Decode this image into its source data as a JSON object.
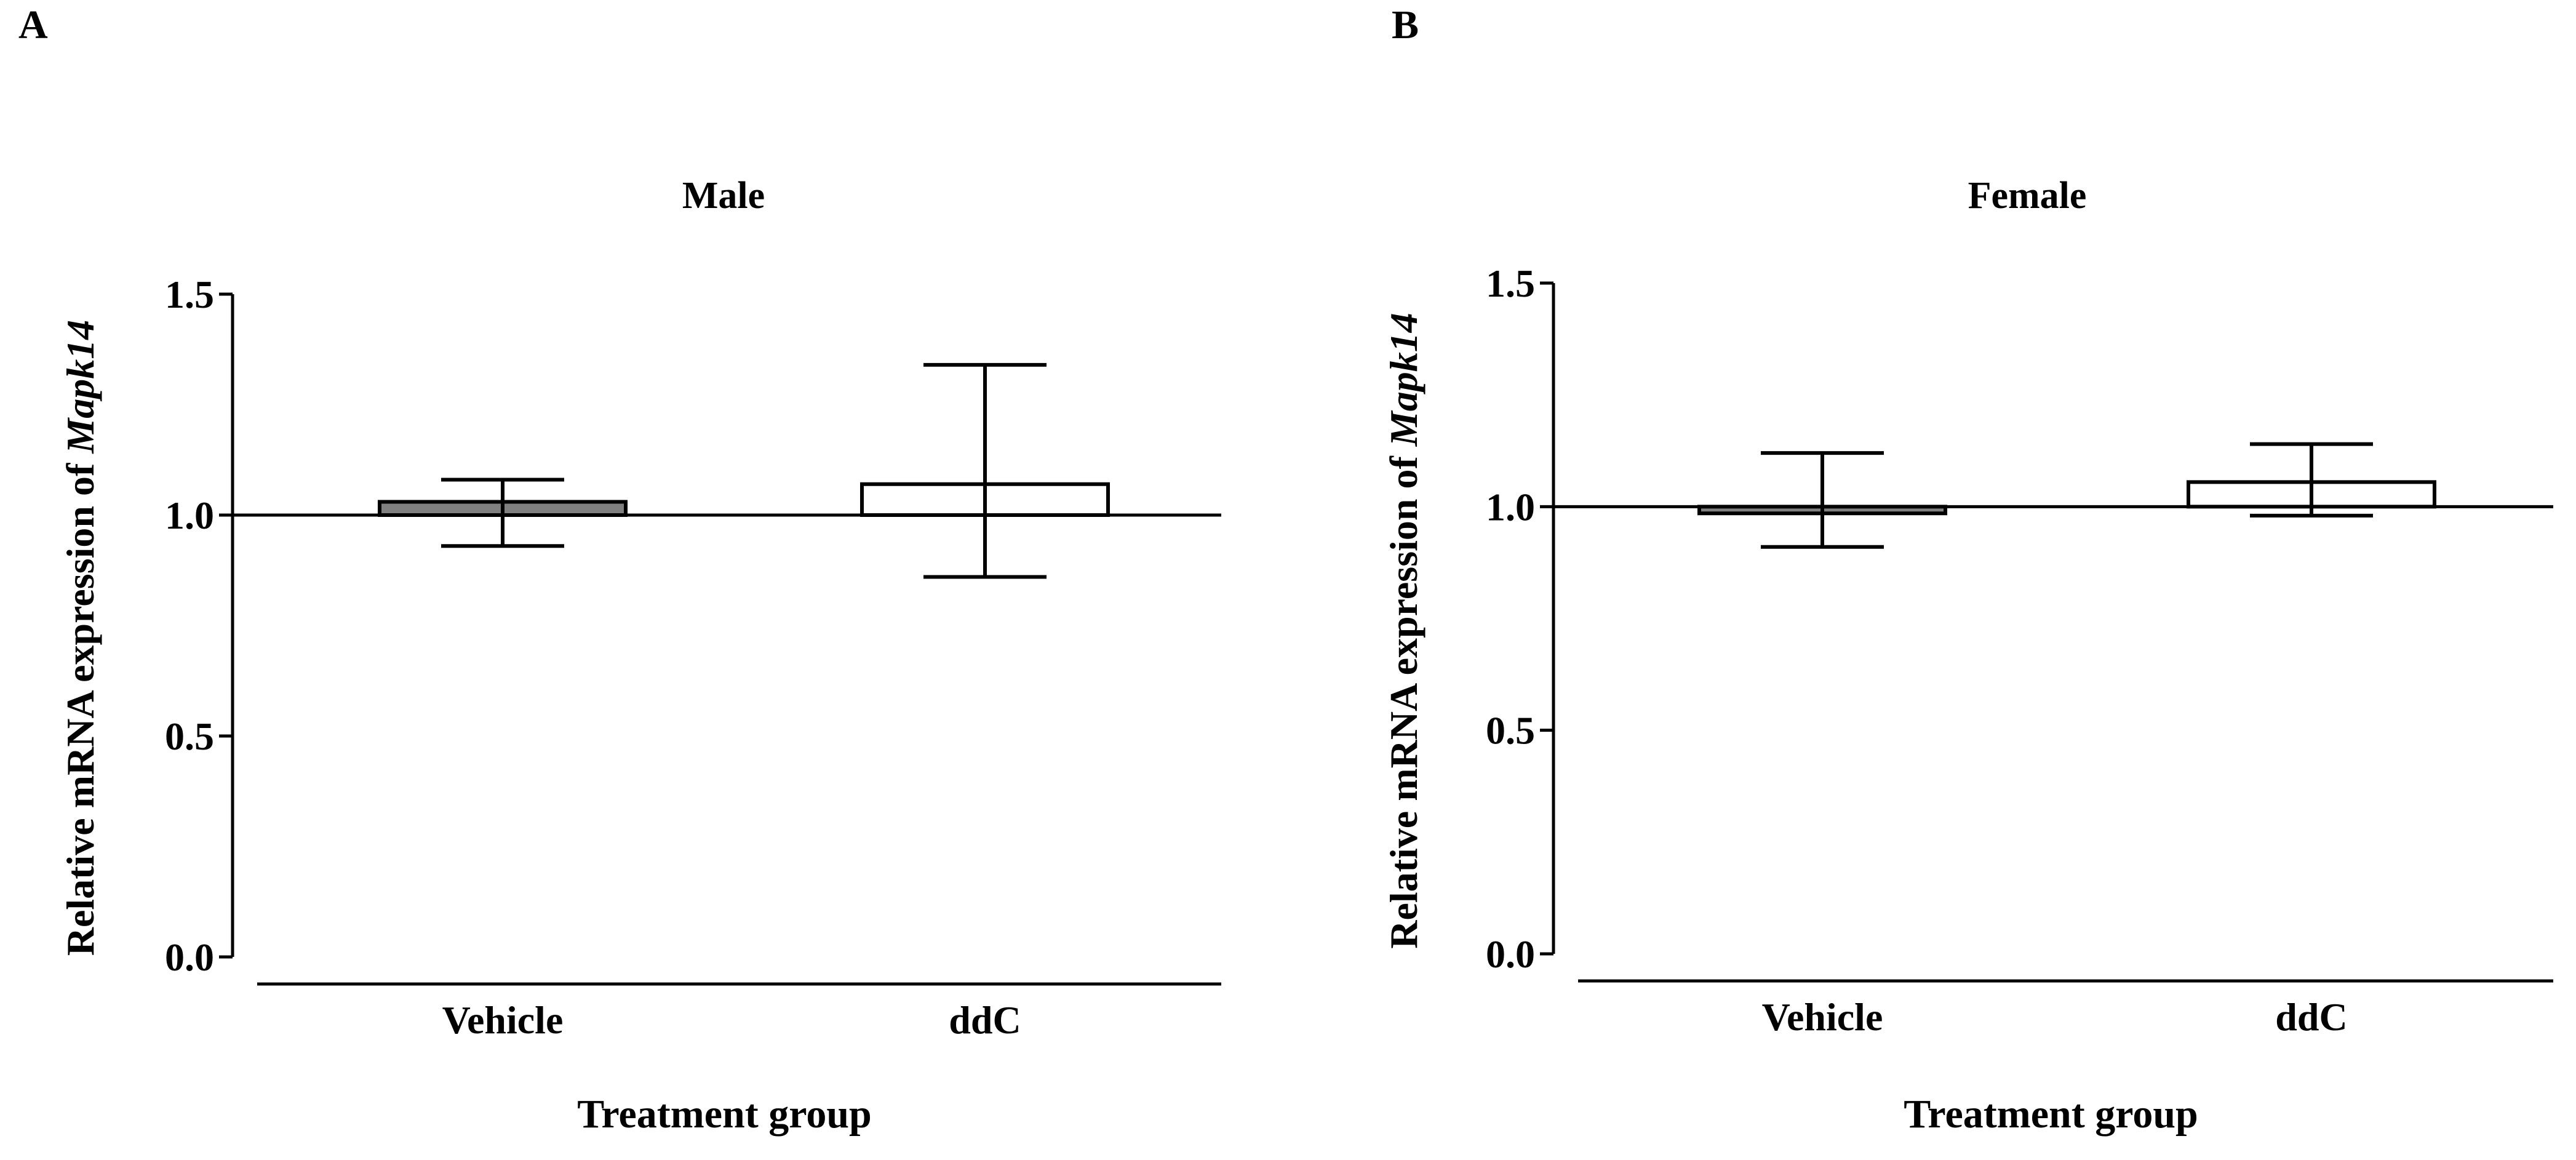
{
  "chart_data": [
    {
      "panel_label": "A",
      "type": "bar",
      "title": "Male",
      "xlabel": "Treatment group",
      "ylabel_prefix": "Relative mRNA expression of ",
      "ylabel_gene": "Mapk14",
      "ylim": [
        0,
        1.5
      ],
      "yticks": [
        "0.0",
        "0.5",
        "1.0",
        "1.5"
      ],
      "baseline": 1.0,
      "categories": [
        "Vehicle",
        "ddC"
      ],
      "values": [
        1.03,
        1.07
      ],
      "err_low": [
        0.93,
        0.86
      ],
      "err_high": [
        1.08,
        1.34
      ],
      "fills": [
        "#808080",
        "#ffffff"
      ]
    },
    {
      "panel_label": "B",
      "type": "bar",
      "title": "Female",
      "xlabel": "Treatment group",
      "ylabel_prefix": "Relative mRNA expression of ",
      "ylabel_gene": "Mapk14",
      "ylim": [
        0,
        1.5
      ],
      "yticks": [
        "0.0",
        "0.5",
        "1.0",
        "1.5"
      ],
      "baseline": 1.0,
      "categories": [
        "Vehicle",
        "ddC"
      ],
      "values": [
        0.985,
        1.055
      ],
      "err_low": [
        0.91,
        0.98
      ],
      "err_high": [
        1.12,
        1.14
      ],
      "fills": [
        "#808080",
        "#ffffff"
      ]
    }
  ]
}
